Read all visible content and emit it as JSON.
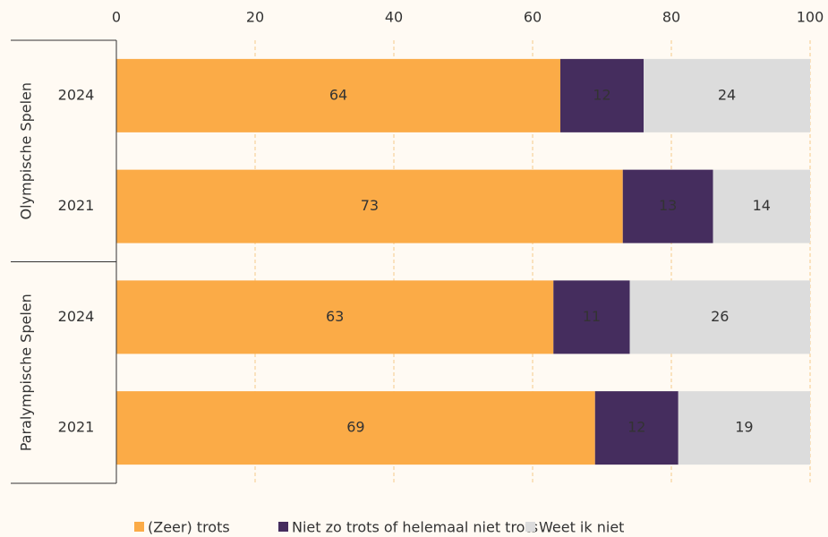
{
  "chart_data": {
    "type": "stacked-bar-horizontal",
    "groups": [
      {
        "name": "Olympische Spelen",
        "categories": [
          "2024",
          "2021"
        ]
      },
      {
        "name": "Paralympische Spelen",
        "categories": [
          "2024",
          "2021"
        ]
      }
    ],
    "series": [
      {
        "name": "(Zeer) trots",
        "color": "#fbab47",
        "label_color": "#555555",
        "values": [
          64,
          73,
          63,
          69
        ]
      },
      {
        "name": "Niet zo trots of helemaal niet trots",
        "color": "#452d5e",
        "label_color": "#ffffff",
        "values": [
          12,
          13,
          11,
          12
        ]
      },
      {
        "name": "Weet ik niet",
        "color": "#dcdcdc",
        "label_color": "#555555",
        "values": [
          24,
          14,
          26,
          19
        ]
      }
    ],
    "xlim": [
      0,
      100
    ],
    "xticks": [
      0,
      20,
      40,
      60,
      80,
      100
    ],
    "grid": true,
    "legend": "bottom"
  }
}
